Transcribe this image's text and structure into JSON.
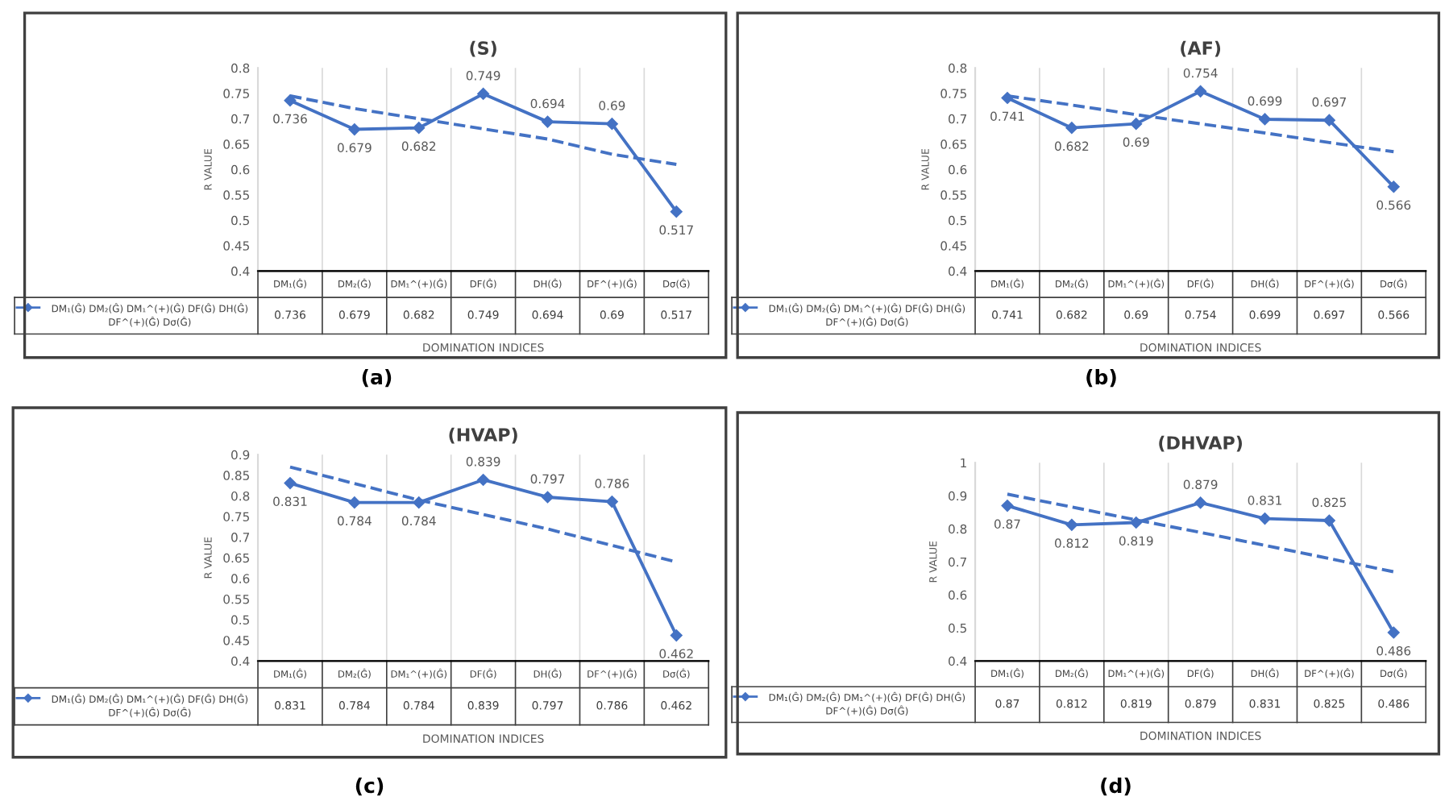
{
  "chart_data": [
    {
      "type": "line",
      "title": "(S)",
      "xlabel": "DOMINATION INDICES",
      "ylabel": "R VALUE",
      "annotations": [
        "(a)"
      ],
      "categories": [
        "DM₁(Ĝ)",
        "DM₂(Ĝ)",
        "DM₁^(+)(Ĝ)",
        "DF(Ĝ)",
        "DH(Ĝ)",
        "DF^(+)(Ĝ)",
        "Dσ(Ĝ)"
      ],
      "series": [
        {
          "name": "DM₁(Ĝ) DM₂(Ĝ) DM₁^(+)(Ĝ) DF(Ĝ) DH(Ĝ) DF^(+)(Ĝ) Dσ(Ĝ)",
          "color": "#4472c4",
          "marker": "diamond",
          "line_style": "solid",
          "values": [
            0.736,
            0.679,
            0.682,
            0.749,
            0.694,
            0.69,
            0.517
          ],
          "value_labels": [
            "0.736",
            "0.679",
            "0.682",
            "0.749",
            "0.694",
            "0.69",
            "0.517"
          ]
        },
        {
          "color": "#4472c4",
          "marker": "none",
          "line_style": "dashed",
          "values": [
            0.745,
            0.72,
            0.7,
            0.68,
            0.66,
            0.63,
            0.61
          ]
        }
      ],
      "ylim": [
        0.4,
        0.8
      ],
      "yticks": [
        0.4,
        0.45,
        0.5,
        0.55,
        0.6,
        0.65,
        0.7,
        0.75,
        0.8
      ],
      "grid": "x",
      "legend": "bottom left"
    },
    {
      "type": "line",
      "title": "(AF)",
      "xlabel": "DOMINATION INDICES",
      "ylabel": "R VALUE",
      "annotations": [
        "(b)"
      ],
      "categories": [
        "DM₁(Ĝ)",
        "DM₂(Ĝ)",
        "DM₁^(+)(Ĝ)",
        "DF(Ĝ)",
        "DH(Ĝ)",
        "DF^(+)(Ĝ)",
        "Dσ(Ĝ)"
      ],
      "series": [
        {
          "name": "DM₁(Ĝ) DM₂(Ĝ) DM₁^(+)(Ĝ) DF(Ĝ) DH(Ĝ) DF^(+)(Ĝ) Dσ(Ĝ)",
          "color": "#4472c4",
          "marker": "diamond",
          "line_style": "solid",
          "values": [
            0.741,
            0.682,
            0.69,
            0.754,
            0.699,
            0.697,
            0.566
          ],
          "value_labels": [
            "0.741",
            "0.682",
            "0.69",
            "0.754",
            "0.699",
            "0.697",
            "0.566"
          ]
        },
        {
          "color": "#4472c4",
          "marker": "none",
          "line_style": "dashed",
          "values": [
            0.745,
            0.727,
            0.708,
            0.69,
            0.672,
            0.653,
            0.635
          ]
        }
      ],
      "ylim": [
        0.4,
        0.8
      ],
      "yticks": [
        0.4,
        0.45,
        0.5,
        0.55,
        0.6,
        0.65,
        0.7,
        0.75,
        0.8
      ],
      "grid": "x",
      "legend": "bottom left"
    },
    {
      "type": "line",
      "title": "(HVAP)",
      "xlabel": "DOMINATION INDICES",
      "ylabel": "R VALUE",
      "annotations": [
        "(c)"
      ],
      "categories": [
        "DM₁(Ĝ)",
        "DM₂(Ĝ)",
        "DM₁^(+)(Ĝ)",
        "DF(Ĝ)",
        "DH(Ĝ)",
        "DF^(+)(Ĝ)",
        "Dσ(Ĝ)"
      ],
      "series": [
        {
          "name": "DM₁(Ĝ) DM₂(Ĝ) DM₁^(+)(Ĝ) DF(Ĝ) DH(Ĝ) DF^(+)(Ĝ) Dσ(Ĝ)",
          "color": "#4472c4",
          "marker": "diamond",
          "line_style": "solid",
          "values": [
            0.831,
            0.784,
            0.784,
            0.839,
            0.797,
            0.786,
            0.462
          ],
          "value_labels": [
            "0.831",
            "0.784",
            "0.784",
            "0.839",
            "0.797",
            "0.786",
            "0.462"
          ]
        },
        {
          "color": "#4472c4",
          "marker": "none",
          "line_style": "dashed",
          "values": [
            0.87,
            0.83,
            0.79,
            0.755,
            0.72,
            0.68,
            0.64
          ]
        }
      ],
      "ylim": [
        0.4,
        0.9
      ],
      "yticks": [
        0.4,
        0.45,
        0.5,
        0.55,
        0.6,
        0.65,
        0.7,
        0.75,
        0.8,
        0.85,
        0.9
      ],
      "grid": "x",
      "legend": "bottom left"
    },
    {
      "type": "line",
      "title": "(DHVAP)",
      "xlabel": "DOMINATION INDICES",
      "ylabel": "R VALUE",
      "annotations": [
        "(d)"
      ],
      "categories": [
        "DM₁(Ĝ)",
        "DM₂(Ĝ)",
        "DM₁^(+)(Ĝ)",
        "DF(Ĝ)",
        "DH(Ĝ)",
        "DF^(+)(Ĝ)",
        "Dσ(Ĝ)"
      ],
      "series": [
        {
          "name": "DM₁(Ĝ) DM₂(Ĝ) DM₁^(+)(Ĝ) DF(Ĝ) DH(Ĝ) DF^(+)(Ĝ) Dσ(Ĝ)",
          "color": "#4472c4",
          "marker": "diamond",
          "line_style": "solid",
          "values": [
            0.87,
            0.812,
            0.819,
            0.879,
            0.831,
            0.825,
            0.486
          ],
          "value_labels": [
            "0.87",
            "0.812",
            "0.819",
            "0.879",
            "0.831",
            "0.825",
            "0.486"
          ]
        },
        {
          "color": "#4472c4",
          "marker": "none",
          "line_style": "dashed",
          "values": [
            0.905,
            0.866,
            0.827,
            0.789,
            0.75,
            0.71,
            0.67
          ]
        }
      ],
      "ylim": [
        0.4,
        1
      ],
      "yticks": [
        0.4,
        0.5,
        0.6,
        0.7,
        0.8,
        0.9,
        1
      ],
      "grid": "x",
      "legend": "bottom left"
    }
  ]
}
